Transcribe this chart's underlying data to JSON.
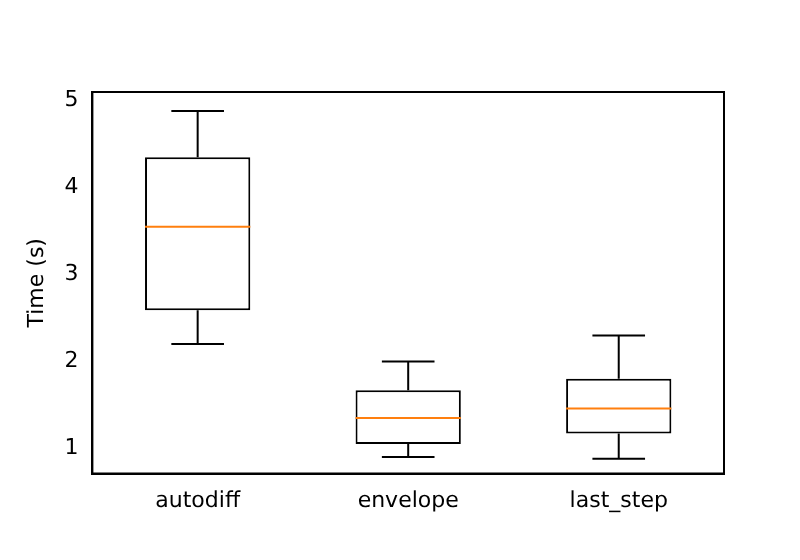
{
  "chart_data": {
    "type": "box",
    "ylabel": "Time (s)",
    "categories": [
      "autodiff",
      "envelope",
      "last_step"
    ],
    "boxes": [
      {
        "low": 2.2,
        "q1": 2.59,
        "median": 3.55,
        "q3": 4.35,
        "high": 4.88
      },
      {
        "low": 0.9,
        "q1": 1.05,
        "median": 1.35,
        "q3": 1.67,
        "high": 2.0
      },
      {
        "low": 0.88,
        "q1": 1.17,
        "median": 1.46,
        "q3": 1.8,
        "high": 2.3
      }
    ],
    "color": "#000000",
    "ylim": [
      0.71,
      5.1
    ],
    "yticks": [
      1,
      2,
      3,
      4,
      5
    ],
    "grid": false,
    "legend": false
  }
}
